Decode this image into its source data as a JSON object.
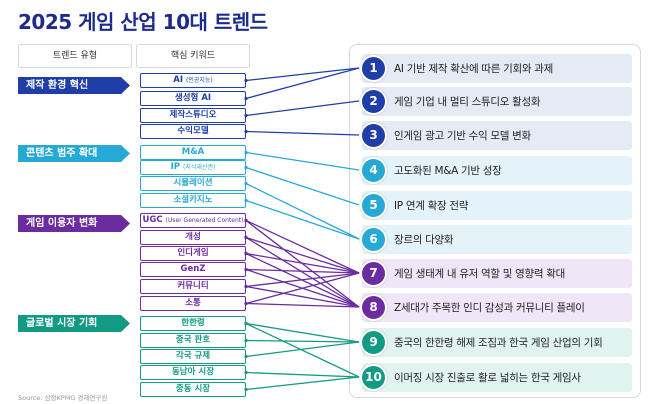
{
  "title": "2025 게임 산업 10대 트렌드",
  "headers": {
    "type": "트렌드 유형",
    "keyword": "핵심 키워드"
  },
  "colors": {
    "blue": "#1f3ea8",
    "teal": "#27a9d6",
    "purple": "#6a2c9f",
    "green": "#139a85"
  },
  "categories": [
    {
      "label": "제작 환경 혁신",
      "color": "blue"
    },
    {
      "label": "콘텐츠 범주 확대",
      "color": "teal"
    },
    {
      "label": "게임 이용자 변화",
      "color": "purple"
    },
    {
      "label": "글로벌 시장 기회",
      "color": "green"
    }
  ],
  "keywords": [
    {
      "label": "AI",
      "sub": "(인공지능)",
      "color": "blue",
      "links": [
        1
      ]
    },
    {
      "label": "생성형 AI",
      "sub": "",
      "color": "blue",
      "links": [
        1
      ]
    },
    {
      "label": "제작스튜디오",
      "sub": "",
      "color": "blue",
      "links": [
        2
      ]
    },
    {
      "label": "수익모델",
      "sub": "",
      "color": "blue",
      "links": [
        3
      ]
    },
    {
      "label": "M&A",
      "sub": "",
      "color": "teal",
      "links": [
        4
      ]
    },
    {
      "label": "IP",
      "sub": "(지식재산권)",
      "color": "teal",
      "links": [
        5
      ]
    },
    {
      "label": "시뮬레이션",
      "sub": "",
      "color": "teal",
      "links": [
        6
      ]
    },
    {
      "label": "소셜카지노",
      "sub": "",
      "color": "teal",
      "links": [
        6
      ]
    },
    {
      "label": "UGC",
      "sub": "(User Generated Content)",
      "color": "purple",
      "links": [
        7,
        8
      ]
    },
    {
      "label": "개성",
      "sub": "",
      "color": "purple",
      "links": [
        7,
        8
      ]
    },
    {
      "label": "인디게임",
      "sub": "",
      "color": "purple",
      "links": [
        7,
        8
      ]
    },
    {
      "label": "GenZ",
      "sub": "",
      "color": "purple",
      "links": [
        7,
        8
      ]
    },
    {
      "label": "커뮤니티",
      "sub": "",
      "color": "purple",
      "links": [
        7,
        8
      ]
    },
    {
      "label": "소통",
      "sub": "",
      "color": "purple",
      "links": [
        7,
        8
      ]
    },
    {
      "label": "한한령",
      "sub": "",
      "color": "green",
      "links": [
        9,
        10
      ]
    },
    {
      "label": "중국 판호",
      "sub": "",
      "color": "green",
      "links": [
        9
      ]
    },
    {
      "label": "각국 규제",
      "sub": "",
      "color": "green",
      "links": [
        9
      ]
    },
    {
      "label": "동남아 시장",
      "sub": "",
      "color": "green",
      "links": [
        10
      ]
    },
    {
      "label": "중동 시장",
      "sub": "",
      "color": "green",
      "links": [
        10
      ]
    }
  ],
  "trends": [
    {
      "num": "1",
      "label": "AI 기반 제작 확산에 따른 기회와 과제",
      "color": "blue"
    },
    {
      "num": "2",
      "label": "게임 기업 내 멀티 스튜디오 활성화",
      "color": "blue"
    },
    {
      "num": "3",
      "label": "인게임 광고 기반 수익 모델 변화",
      "color": "blue"
    },
    {
      "num": "4",
      "label": "고도화된 M&A 기반 성장",
      "color": "teal"
    },
    {
      "num": "5",
      "label": "IP 연계 확장 전략",
      "color": "teal"
    },
    {
      "num": "6",
      "label": "장르의 다양화",
      "color": "teal"
    },
    {
      "num": "7",
      "label": "게임 생태계 내 유저 역할 및 영향력 확대",
      "color": "purple"
    },
    {
      "num": "8",
      "label": "Z세대가 주목한 인디 감성과 커뮤니티 플레이",
      "color": "purple"
    },
    {
      "num": "9",
      "label": "중국의 한한령 해제 조짐과 한국 게임 산업의 기회",
      "color": "green"
    },
    {
      "num": "10",
      "label": "이머징 시장 진출로 활로 넓히는 한국 게임사",
      "color": "green"
    }
  ],
  "source": "Source: 삼정KPMG 경제연구원"
}
